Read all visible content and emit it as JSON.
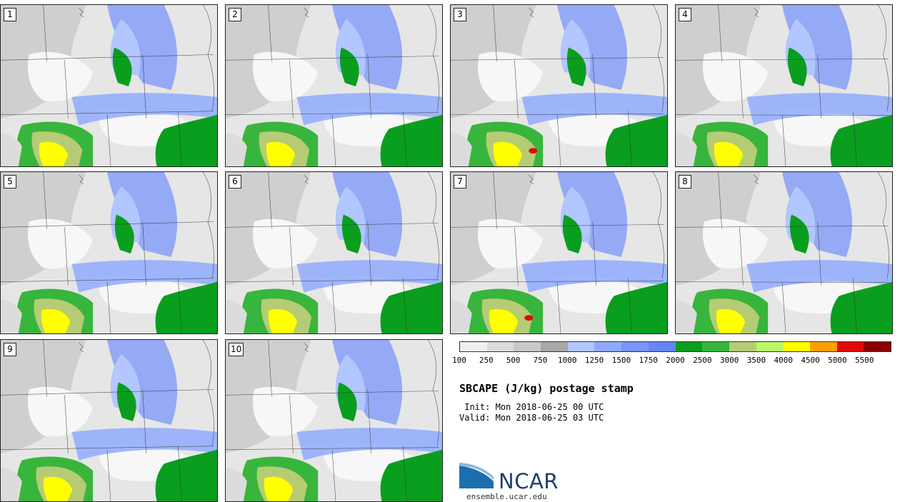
{
  "panels": [
    {
      "label": "1"
    },
    {
      "label": "2"
    },
    {
      "label": "3"
    },
    {
      "label": "4"
    },
    {
      "label": "5"
    },
    {
      "label": "6"
    },
    {
      "label": "7"
    },
    {
      "label": "8"
    },
    {
      "label": "9"
    },
    {
      "label": "10"
    }
  ],
  "colorbar": {
    "colors": [
      "#f0f0f0",
      "#dcdcdc",
      "#c8c8c8",
      "#a8a8a8",
      "#b2c6ff",
      "#8faafe",
      "#7a94fa",
      "#6686f5",
      "#0a9e1e",
      "#38b53c",
      "#b6cc74",
      "#b9f76a",
      "#ffff00",
      "#ffa000",
      "#e20a0a",
      "#8b0000"
    ],
    "labels": [
      "100",
      "250",
      "500",
      "750",
      "1000",
      "1250",
      "1500",
      "1750",
      "2000",
      "2500",
      "3000",
      "3500",
      "4000",
      "4500",
      "5000",
      "5500"
    ]
  },
  "title": "SBCAPE (J/kg) postage stamp",
  "init": " Init: Mon 2018-06-25 00 UTC",
  "valid": "Valid: Mon 2018-06-25 03 UTC",
  "logo": {
    "text": "NCAR",
    "site": "ensemble.ucar.edu"
  }
}
